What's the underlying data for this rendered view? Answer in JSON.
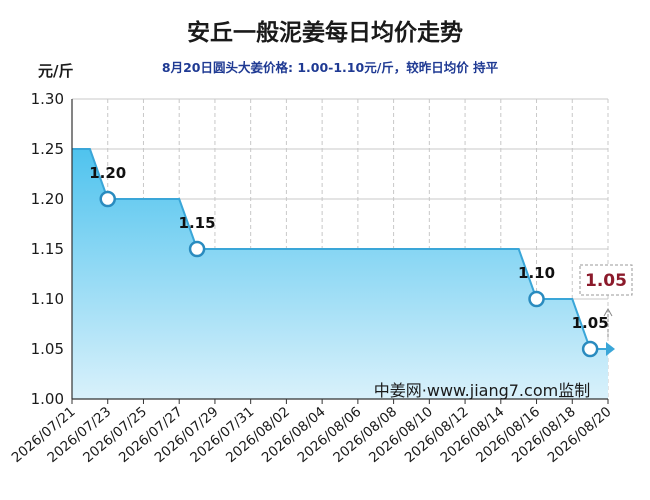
{
  "header": {
    "title": "安丘一般泥姜每日均价走势",
    "subtitle": "8月20日圆头大姜价格: 1.00-1.10元/斤，较昨日均价 持平"
  },
  "watermark": "中姜网·www.jiang7.com监制",
  "colors": {
    "area_top": "#4fc3ee",
    "area_bottom": "#d9f1fb",
    "line": "#3aa6d8",
    "marker_stroke": "#2a8bbf",
    "latest_text": "#8b1a2b",
    "grid": "#c8c8c8"
  },
  "chart_data": {
    "type": "area",
    "title": "安丘一般泥姜每日均价走势",
    "ylabel": "元/斤",
    "xlabel": "",
    "ylim": [
      1.0,
      1.3
    ],
    "yticks": [
      "1.00",
      "1.05",
      "1.10",
      "1.15",
      "1.20",
      "1.25",
      "1.30"
    ],
    "xticks": [
      "2026/07/21",
      "2026/07/23",
      "2026/07/25",
      "2026/07/27",
      "2026/07/29",
      "2026/07/31",
      "2026/08/02",
      "2026/08/04",
      "2026/08/06",
      "2026/08/08",
      "2026/08/10",
      "2026/08/12",
      "2026/08/14",
      "2026/08/16",
      "2026/08/18",
      "2026/08/20"
    ],
    "grid": true,
    "legend": "none",
    "series": [
      {
        "x": [
          "2026/07/21",
          "2026/07/22",
          "2026/07/23",
          "2026/07/24",
          "2026/07/25",
          "2026/07/26",
          "2026/07/27",
          "2026/07/28",
          "2026/07/29",
          "2026/07/30",
          "2026/07/31",
          "2026/08/01",
          "2026/08/02",
          "2026/08/03",
          "2026/08/04",
          "2026/08/05",
          "2026/08/06",
          "2026/08/07",
          "2026/08/08",
          "2026/08/09",
          "2026/08/10",
          "2026/08/11",
          "2026/08/12",
          "2026/08/13",
          "2026/08/14",
          "2026/08/15",
          "2026/08/16",
          "2026/08/17",
          "2026/08/18",
          "2026/08/19",
          "2026/08/20"
        ],
        "values": [
          1.25,
          1.25,
          1.2,
          1.2,
          1.2,
          1.2,
          1.2,
          1.15,
          1.15,
          1.15,
          1.15,
          1.15,
          1.15,
          1.15,
          1.15,
          1.15,
          1.15,
          1.15,
          1.15,
          1.15,
          1.15,
          1.15,
          1.15,
          1.15,
          1.15,
          1.15,
          1.1,
          1.1,
          1.1,
          1.05,
          1.05
        ]
      }
    ],
    "annotations": [
      {
        "x": "2026/07/23",
        "y": 1.2,
        "label": "1.20"
      },
      {
        "x": "2026/07/28",
        "y": 1.15,
        "label": "1.15"
      },
      {
        "x": "2026/08/16",
        "y": 1.1,
        "label": "1.10"
      },
      {
        "x": "2026/08/19",
        "y": 1.05,
        "label": "1.05"
      }
    ],
    "latest": {
      "x": "2026/08/20",
      "y": 1.05,
      "label": "1.05"
    }
  }
}
